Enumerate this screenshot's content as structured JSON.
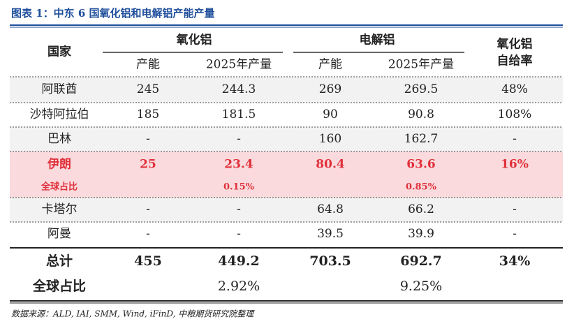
{
  "title": "图表 1：中东 6 国氧化铝和电解铝产能产量",
  "table": {
    "header": {
      "country": "国家",
      "alumina": "氧化铝",
      "electrolytic": "电解铝",
      "self_sufficiency": [
        "氧化铝",
        "自给率"
      ],
      "subheaders": [
        "产能",
        "2025年产量",
        "产能",
        "2025年产量"
      ]
    },
    "rows": [
      [
        "阿联酋",
        "245",
        "244.3",
        "269",
        "269.5",
        "48%"
      ],
      [
        "沙特阿拉伯",
        "185",
        "181.5",
        "90",
        "90.8",
        "108%"
      ],
      [
        "巴林",
        "-",
        "-",
        "160",
        "162.7",
        "-"
      ],
      [
        "伊朗",
        "25",
        "23.4",
        "80.4",
        "63.6",
        "16%"
      ],
      [
        "卡塔尔",
        "-",
        "-",
        "64.8",
        "66.2",
        "-"
      ],
      [
        "阿曼",
        "-",
        "-",
        "39.5",
        "39.9",
        "-"
      ]
    ],
    "iran_share": {
      "label": "全球占比",
      "alumina_output": "0.15%",
      "electrolytic_output": "0.85%"
    },
    "total": [
      "总计",
      "455",
      "449.2",
      "703.5",
      "692.7",
      "34%"
    ],
    "total_share": {
      "label": "全球占比",
      "alumina_output": "2.92%",
      "electrolytic_output": "9.25%"
    }
  },
  "source": "数据来源：ALD, IAI, SMM, Wind, iFinD, 中粮期货研究院整理"
}
